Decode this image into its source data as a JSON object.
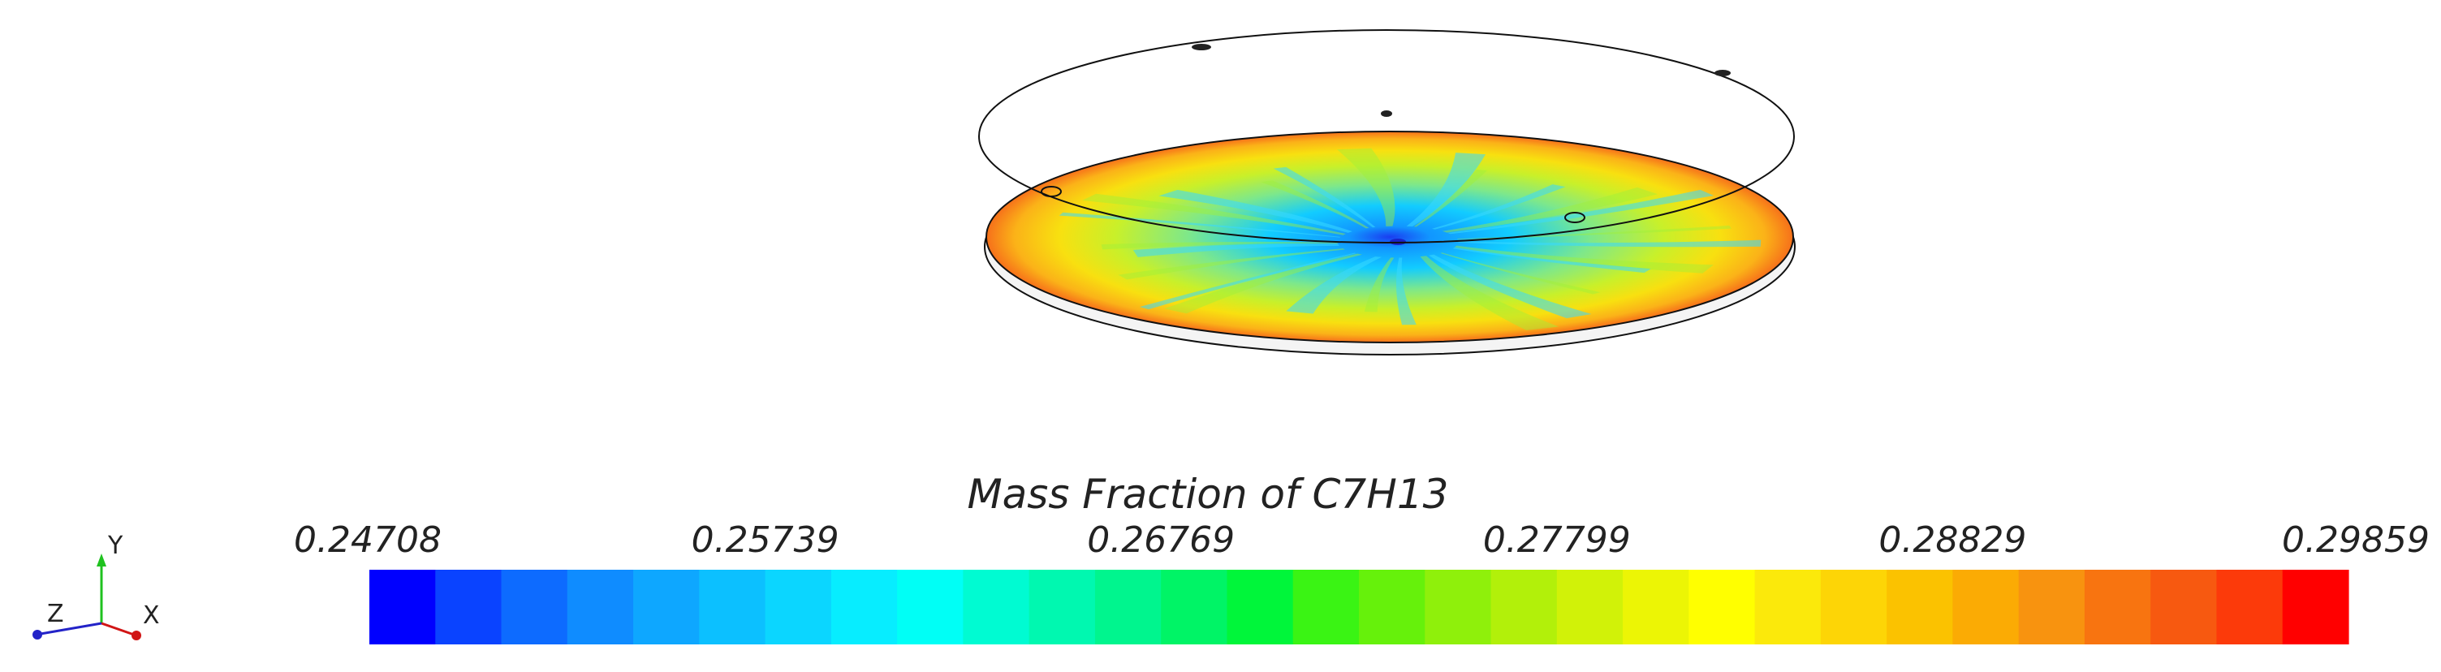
{
  "legend": {
    "title": "Mass Fraction of C7H13",
    "ticks": [
      "0.24708",
      "0.25739",
      "0.26769",
      "0.27799",
      "0.28829",
      "0.29859"
    ],
    "bands": [
      "#0000ff",
      "#0a43ff",
      "#0d6bff",
      "#0f8cff",
      "#0ea7ff",
      "#0cc0ff",
      "#0bd6ff",
      "#07edff",
      "#00fff6",
      "#00fbd2",
      "#00f8b0",
      "#00f58e",
      "#00f466",
      "#00f63a",
      "#3af414",
      "#66f10b",
      "#8ff00b",
      "#b2f00a",
      "#d1f208",
      "#ecf505",
      "#ffff00",
      "#fbe90b",
      "#fdd506",
      "#fbc200",
      "#fbab04",
      "#f8930f",
      "#f87410",
      "#f75910",
      "#fc3a0a",
      "#ff0000"
    ]
  },
  "axes": {
    "y": "Y",
    "z": "Z",
    "x": "X"
  },
  "colors": {
    "y_axis": "#1fc21f",
    "x_axis": "#d11515",
    "z_axis": "#2323c8",
    "outline": "#111111"
  }
}
